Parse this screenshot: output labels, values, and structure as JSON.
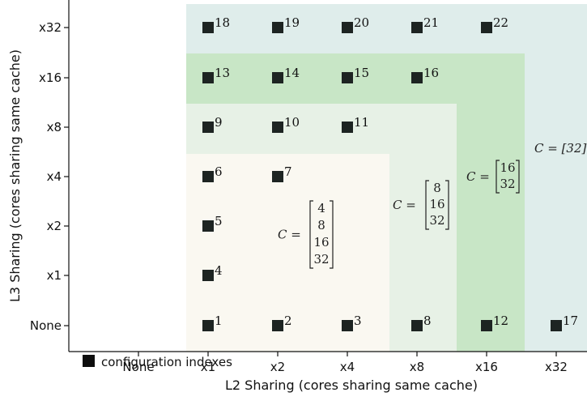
{
  "chart_data": {
    "type": "scatter",
    "xlabel": "L2 Sharing (cores sharing same cache)",
    "ylabel": "L3 Sharing (cores sharing same cache)",
    "x_categories": [
      "None",
      "x1",
      "x2",
      "x4",
      "x8",
      "x16",
      "x32"
    ],
    "y_categories": [
      "None",
      "x1",
      "x2",
      "x4",
      "x8",
      "x16",
      "x32"
    ],
    "points": [
      {
        "label": "1",
        "x": "x1",
        "y": "None"
      },
      {
        "label": "2",
        "x": "x2",
        "y": "None"
      },
      {
        "label": "3",
        "x": "x4",
        "y": "None"
      },
      {
        "label": "4",
        "x": "x1",
        "y": "x1"
      },
      {
        "label": "5",
        "x": "x1",
        "y": "x2"
      },
      {
        "label": "6",
        "x": "x1",
        "y": "x4"
      },
      {
        "label": "7",
        "x": "x2",
        "y": "x4"
      },
      {
        "label": "8",
        "x": "x8",
        "y": "None"
      },
      {
        "label": "9",
        "x": "x1",
        "y": "x8"
      },
      {
        "label": "10",
        "x": "x2",
        "y": "x8"
      },
      {
        "label": "11",
        "x": "x4",
        "y": "x8"
      },
      {
        "label": "12",
        "x": "x16",
        "y": "None"
      },
      {
        "label": "13",
        "x": "x1",
        "y": "x16"
      },
      {
        "label": "14",
        "x": "x2",
        "y": "x16"
      },
      {
        "label": "15",
        "x": "x4",
        "y": "x16"
      },
      {
        "label": "16",
        "x": "x8",
        "y": "x16"
      },
      {
        "label": "17",
        "x": "x32",
        "y": "None"
      },
      {
        "label": "18",
        "x": "x1",
        "y": "x32"
      },
      {
        "label": "19",
        "x": "x2",
        "y": "x32"
      },
      {
        "label": "20",
        "x": "x4",
        "y": "x32"
      },
      {
        "label": "21",
        "x": "x8",
        "y": "x32"
      },
      {
        "label": "22",
        "x": "x16",
        "y": "x32"
      }
    ],
    "regions": [
      {
        "name": "C4",
        "label": "C =",
        "values": [
          "4",
          "8",
          "16",
          "32"
        ],
        "color": "#faf8f1"
      },
      {
        "name": "C8",
        "label": "C =",
        "values": [
          "8",
          "16",
          "32"
        ],
        "color": "#e7f1e6"
      },
      {
        "name": "C16",
        "label": "C =",
        "values": [
          "16",
          "32"
        ],
        "color": "#c8e6c6"
      },
      {
        "name": "C32",
        "label": "C = [32]",
        "values": [],
        "color": "#dfedeb"
      }
    ],
    "legend": {
      "label": "configuration indexes",
      "position": "bottom-left"
    }
  }
}
